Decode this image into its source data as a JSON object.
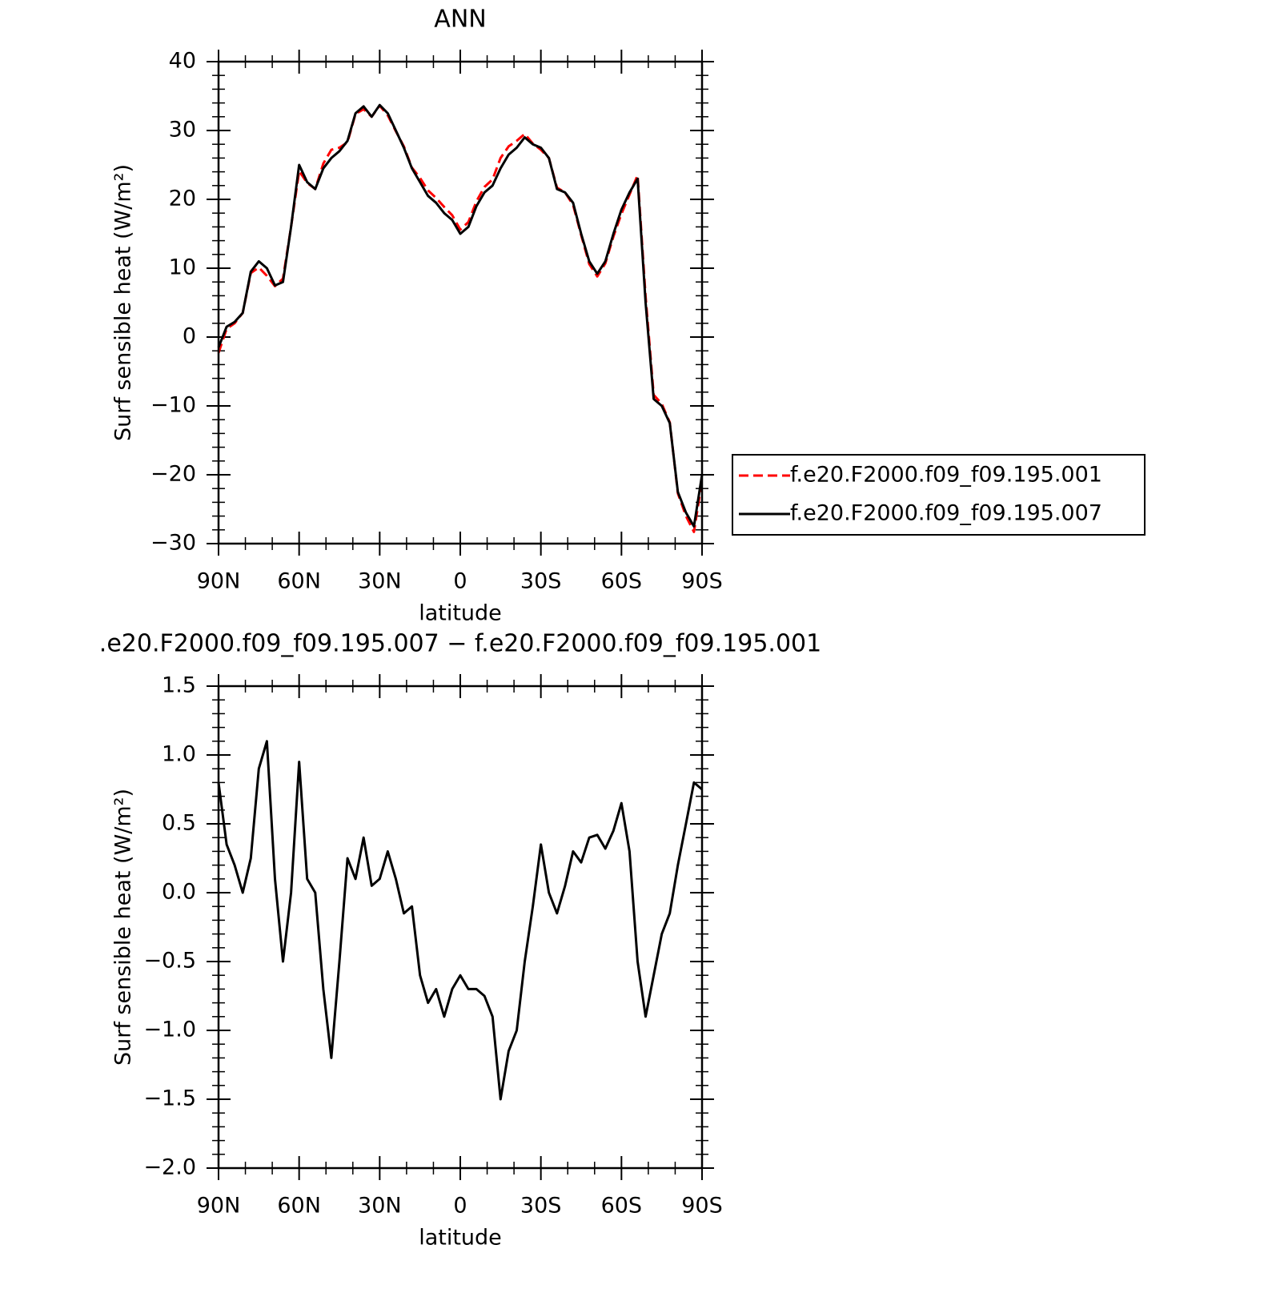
{
  "chart_data": [
    {
      "type": "line",
      "title": "ANN",
      "xlabel": "latitude",
      "ylabel": "Surf sensible heat (W/m²)",
      "x": [
        90,
        87,
        84,
        81,
        78,
        75,
        72,
        69,
        66,
        63,
        60,
        57,
        54,
        51,
        48,
        45,
        42,
        39,
        36,
        33,
        30,
        27,
        24,
        21,
        18,
        15,
        12,
        9,
        6,
        3,
        0,
        -3,
        -6,
        -9,
        -12,
        -15,
        -18,
        -21,
        -24,
        -27,
        -30,
        -33,
        -36,
        -39,
        -42,
        -45,
        -48,
        -51,
        -54,
        -57,
        -60,
        -63,
        -66,
        -69,
        -72,
        -75,
        -78,
        -81,
        -84,
        -87,
        -90
      ],
      "series": [
        {
          "name": "f.e20.F2000.f09_f09.195.001",
          "color": "#ff0000",
          "linestyle": "dashed",
          "values": [
            -2.3,
            1.2,
            2.0,
            3.5,
            9.3,
            10.1,
            8.9,
            7.4,
            8.5,
            16,
            24.1,
            22.4,
            21.5,
            25.2,
            27.2,
            27.5,
            28.3,
            32.4,
            33.1,
            32.0,
            33.6,
            32.2,
            29.9,
            27.7,
            24.6,
            23.1,
            21.3,
            20.2,
            18.9,
            17.7,
            15.6,
            16.7,
            19.7,
            21.8,
            22.9,
            26.0,
            27.7,
            28.5,
            29.5,
            28.1,
            27.2,
            26.0,
            21.7,
            21.0,
            19.2,
            14.8,
            10.6,
            8.8,
            10.7,
            14.6,
            17.9,
            20.7,
            23.5,
            5.9,
            -8.4,
            -9.7,
            -12.4,
            -22.7,
            -26.0,
            -28.3,
            -20.8
          ]
        },
        {
          "name": "f.e20.F2000.f09_f09.195.007",
          "color": "#000000",
          "linestyle": "solid",
          "values": [
            -1.5,
            1.5,
            2.2,
            3.5,
            9.5,
            11,
            10,
            7.5,
            8,
            16,
            25,
            22.5,
            21.5,
            24.5,
            26,
            27,
            28.5,
            32.5,
            33.5,
            32,
            33.7,
            32.5,
            30,
            27.5,
            24.5,
            22.5,
            20.5,
            19.5,
            18,
            17,
            15,
            16,
            19,
            21,
            22,
            24.5,
            26.5,
            27.5,
            29,
            28,
            27.5,
            26,
            21.5,
            21,
            19.5,
            15,
            11,
            9.2,
            11,
            15,
            18.5,
            21,
            23,
            5,
            -9,
            -10,
            -12.5,
            -22.5,
            -25.5,
            -27.5,
            -20
          ]
        }
      ],
      "legend": "right",
      "xlim": [
        90,
        -90
      ],
      "xticks": [
        {
          "value": 90,
          "label": "90N"
        },
        {
          "value": 60,
          "label": "60N"
        },
        {
          "value": 30,
          "label": "30N"
        },
        0,
        {
          "value": -30,
          "label": "30S"
        },
        {
          "value": -60,
          "label": "60S"
        },
        {
          "value": -90,
          "label": "90S"
        }
      ],
      "ylim": [
        -30,
        40
      ],
      "yticks": [
        {
          "value": -30,
          "label": "−30"
        },
        {
          "value": -20,
          "label": "−20"
        },
        {
          "value": -10,
          "label": "−10"
        },
        0,
        10,
        20,
        30,
        40
      ]
    },
    {
      "type": "line",
      "title": ".e20.F2000.f09_f09.195.007 − f.e20.F2000.f09_f09.195.001",
      "xlabel": "latitude",
      "ylabel": "Surf sensible heat (W/m²)",
      "x": [
        90,
        87,
        84,
        81,
        78,
        75,
        72,
        69,
        66,
        63,
        60,
        57,
        54,
        51,
        48,
        45,
        42,
        39,
        36,
        33,
        30,
        27,
        24,
        21,
        18,
        15,
        12,
        9,
        6,
        3,
        0,
        -3,
        -6,
        -9,
        -12,
        -15,
        -18,
        -21,
        -24,
        -27,
        -30,
        -33,
        -36,
        -39,
        -42,
        -45,
        -48,
        -51,
        -54,
        -57,
        -60,
        -63,
        -66,
        -69,
        -72,
        -75,
        -78,
        -81,
        -84,
        -87,
        -90
      ],
      "series": [
        {
          "color": "#000000",
          "linestyle": "solid",
          "values": [
            0.8,
            0.35,
            0.2,
            0.0,
            0.25,
            0.9,
            1.1,
            0.1,
            -0.5,
            0.0,
            0.95,
            0.1,
            0.0,
            -0.7,
            -1.2,
            -0.5,
            0.25,
            0.1,
            0.4,
            0.05,
            0.1,
            0.3,
            0.1,
            -0.15,
            -0.1,
            -0.6,
            -0.8,
            -0.7,
            -0.9,
            -0.7,
            -0.6,
            -0.7,
            -0.7,
            -0.75,
            -0.9,
            -1.5,
            -1.15,
            -1.0,
            -0.5,
            -0.1,
            0.35,
            0.0,
            -0.15,
            0.05,
            0.3,
            0.22,
            0.4,
            0.42,
            0.32,
            0.45,
            0.65,
            0.3,
            -0.5,
            -0.9,
            -0.6,
            -0.3,
            -0.15,
            0.2,
            0.5,
            0.8,
            0.75
          ]
        }
      ],
      "xlim": [
        90,
        -90
      ],
      "xticks": [
        {
          "value": 90,
          "label": "90N"
        },
        {
          "value": 60,
          "label": "60N"
        },
        {
          "value": 30,
          "label": "30N"
        },
        0,
        {
          "value": -30,
          "label": "30S"
        },
        {
          "value": -60,
          "label": "60S"
        },
        {
          "value": -90,
          "label": "90S"
        }
      ],
      "ylim": [
        -2.0,
        1.5
      ],
      "yticks": [
        {
          "value": -2.0,
          "label": "−2.0"
        },
        {
          "value": -1.5,
          "label": "−1.5"
        },
        {
          "value": -1.0,
          "label": "−1.0"
        },
        {
          "value": -0.5,
          "label": "−0.5"
        },
        {
          "value": 0.0,
          "label": "0.0"
        },
        0.5,
        {
          "value": 1.0,
          "label": "1.0"
        },
        1.5
      ]
    }
  ]
}
